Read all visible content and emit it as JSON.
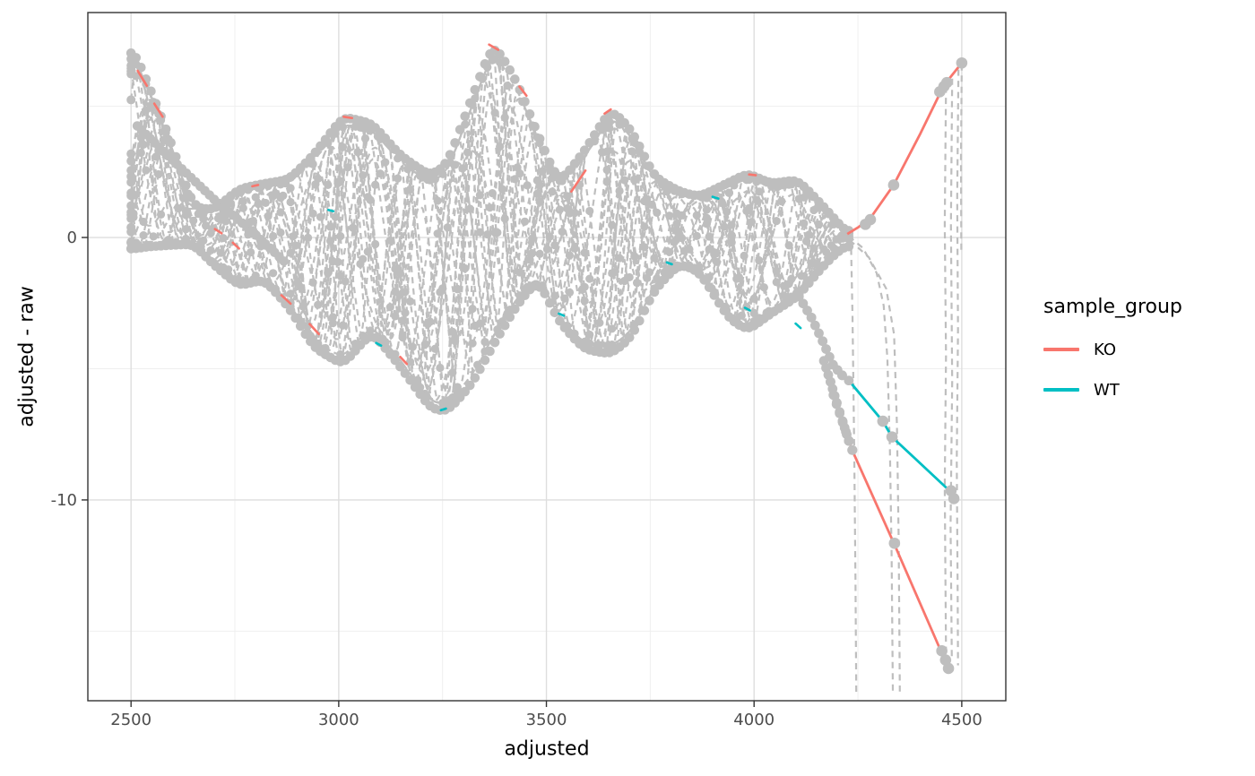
{
  "chart_data": {
    "type": "line",
    "title": "",
    "xlabel": "adjusted",
    "ylabel": "adjusted - raw",
    "x_domain": [
      2396,
      4606
    ],
    "y_domain": [
      -17.65,
      8.57
    ],
    "x_breaks": [
      2500,
      3000,
      3500,
      4000,
      4500
    ],
    "x_minor_breaks": [
      2750,
      3250,
      3750,
      4250
    ],
    "y_breaks": [
      0,
      -10
    ],
    "y_minor_breaks": [
      5,
      -5,
      -15
    ],
    "legend": {
      "title": "sample_group",
      "items": [
        {
          "label": "KO",
          "color": "#F8766D"
        },
        {
          "label": "WT",
          "color": "#00BFC4"
        }
      ]
    },
    "style": {
      "gray": "#BEBEBE",
      "ko": "#F8766D",
      "wt": "#00BFC4",
      "grid_major": "#DEDEDE",
      "grid_minor": "#EFEFEF",
      "panel_border": "#333333",
      "tick_color": "#333333",
      "tick_text": "#4D4D4D",
      "background": "#FFFFFF"
    },
    "n_background_curves": 24,
    "band_envelope": [
      [
        2500,
        7.35,
        -0.45
      ],
      [
        2540,
        5.9,
        -0.35
      ],
      [
        2590,
        3.9,
        -0.3
      ],
      [
        2650,
        1.15,
        -0.25
      ],
      [
        2700,
        1.05,
        -1.05
      ],
      [
        2760,
        1.85,
        -1.85
      ],
      [
        2820,
        2.05,
        -1.6
      ],
      [
        2880,
        2.2,
        -2.65
      ],
      [
        2940,
        3.15,
        -4.2
      ],
      [
        3010,
        4.6,
        -4.85
      ],
      [
        3080,
        4.35,
        -3.6
      ],
      [
        3150,
        3.1,
        -4.95
      ],
      [
        3220,
        2.35,
        -6.5
      ],
      [
        3260,
        2.75,
        -6.65
      ],
      [
        3320,
        5.3,
        -5.6
      ],
      [
        3372,
        7.45,
        -4.1
      ],
      [
        3430,
        5.9,
        -2.55
      ],
      [
        3480,
        3.9,
        -1.6
      ],
      [
        3530,
        2.05,
        -3.2
      ],
      [
        3590,
        3.25,
        -4.25
      ],
      [
        3655,
        4.9,
        -4.45
      ],
      [
        3705,
        4.1,
        -3.8
      ],
      [
        3760,
        2.3,
        -2.0
      ],
      [
        3820,
        1.75,
        -1.0
      ],
      [
        3868,
        1.55,
        -1.3
      ],
      [
        3940,
        2.1,
        -3.1
      ],
      [
        3985,
        2.45,
        -3.55
      ],
      [
        4040,
        2.05,
        -2.9
      ],
      [
        4105,
        2.2,
        -2.25
      ],
      [
        4160,
        1.3,
        -1.2
      ],
      [
        4200,
        0.6,
        -0.55
      ],
      [
        4228,
        0.1,
        -0.25
      ]
    ],
    "ridge_chain": [
      [
        2515,
        4.25
      ],
      [
        2600,
        2.95
      ],
      [
        2700,
        1.45
      ],
      [
        2790,
        0.25
      ],
      [
        2868,
        -0.9
      ]
    ],
    "descent_chains": [
      [
        [
          4108,
          -2.25
        ],
        [
          4138,
          -3.05
        ],
        [
          4165,
          -3.95
        ],
        [
          4190,
          -4.85
        ],
        [
          4212,
          -5.25
        ],
        [
          4228,
          -5.45
        ]
      ],
      [
        [
          4168,
          -4.7
        ],
        [
          4184,
          -5.5
        ],
        [
          4199,
          -6.3
        ],
        [
          4213,
          -7.0
        ],
        [
          4228,
          -7.75
        ],
        [
          4237,
          -8.1
        ]
      ]
    ],
    "highlight_lines": {
      "KO_up": [
        [
          4213,
          0.02
        ],
        [
          4252,
          0.4
        ],
        [
          4285,
          0.85
        ],
        [
          4336,
          2.0
        ],
        [
          4400,
          3.95
        ],
        [
          4457,
          5.8
        ],
        [
          4500,
          6.65
        ]
      ],
      "KO_down": [
        [
          4191,
          -6.0
        ],
        [
          4236,
          -8.1
        ],
        [
          4338,
          -11.7
        ],
        [
          4468,
          -16.42
        ]
      ],
      "WT": [
        [
          4228,
          -5.45
        ],
        [
          4310,
          -7.0
        ],
        [
          4332,
          -7.6
        ],
        [
          4474,
          -9.7
        ]
      ]
    },
    "tail_curves": [
      [
        [
          4228,
          0.05
        ],
        [
          4262,
          -0.4
        ],
        [
          4295,
          -1.35
        ],
        [
          4312,
          -2.6
        ],
        [
          4321,
          -4.6
        ],
        [
          4327,
          -8.0
        ],
        [
          4331,
          -12.0
        ],
        [
          4334,
          -17.3
        ]
      ],
      [
        [
          4230,
          -0.1
        ],
        [
          4276,
          -0.75
        ],
        [
          4318,
          -1.95
        ],
        [
          4337,
          -3.7
        ],
        [
          4344,
          -7.2
        ],
        [
          4348,
          -11.5
        ],
        [
          4351,
          -17.3
        ]
      ],
      [
        [
          4233,
          0.0
        ],
        [
          4237,
          -3.0
        ],
        [
          4241,
          -8.0
        ],
        [
          4244,
          -13.0
        ],
        [
          4246,
          -17.4
        ]
      ],
      [
        [
          4462,
          5.75
        ],
        [
          4459,
          0.5
        ],
        [
          4462,
          -4.5
        ],
        [
          4459,
          -9.5
        ],
        [
          4462,
          -15.8
        ]
      ],
      [
        [
          4477,
          6.05
        ],
        [
          4474,
          0.5
        ],
        [
          4477,
          -5.5
        ],
        [
          4473,
          -11.0
        ],
        [
          4476,
          -16.1
        ]
      ],
      [
        [
          4492,
          6.4
        ],
        [
          4489,
          1.5
        ],
        [
          4491,
          -3.5
        ],
        [
          4488,
          -8.5
        ],
        [
          4490,
          -13.5
        ],
        [
          4491,
          -16.3
        ]
      ],
      [
        [
          4500,
          6.6
        ],
        [
          4498,
          3.0
        ],
        [
          4499,
          -0.5
        ]
      ]
    ],
    "endpoint_dots": [
      [
        4213,
        0.02
      ],
      [
        4268,
        0.5
      ],
      [
        4280,
        0.68
      ],
      [
        4336,
        2.0
      ],
      [
        4447,
        5.55
      ],
      [
        4457,
        5.75
      ],
      [
        4464,
        5.9
      ],
      [
        4500,
        6.65
      ],
      [
        4310,
        -7.0
      ],
      [
        4332,
        -7.6
      ],
      [
        4474,
        -9.65
      ],
      [
        4481,
        -9.95
      ],
      [
        4338,
        -11.65
      ],
      [
        4452,
        -15.75
      ],
      [
        4461,
        -16.1
      ],
      [
        4468,
        -16.42
      ]
    ],
    "accents": {
      "KO": [
        [
          2516,
          6.35,
          2538,
          5.78
        ],
        [
          2556,
          5.1,
          2576,
          4.6
        ],
        [
          2702,
          0.32,
          2718,
          0.16
        ],
        [
          2745,
          -0.2,
          2760,
          -0.42
        ],
        [
          2862,
          -2.2,
          2884,
          -2.52
        ],
        [
          2930,
          -3.3,
          2952,
          -3.68
        ],
        [
          3012,
          4.6,
          3032,
          4.55
        ],
        [
          3148,
          -4.55,
          3164,
          -4.82
        ],
        [
          3362,
          7.35,
          3384,
          7.15
        ],
        [
          3560,
          1.75,
          3594,
          2.55
        ],
        [
          3640,
          4.72,
          3655,
          4.88
        ],
        [
          3988,
          2.4,
          4004,
          2.37
        ],
        [
          2792,
          1.95,
          2806,
          2.0
        ],
        [
          3435,
          5.75,
          3452,
          5.4
        ]
      ],
      "WT": [
        [
          2975,
          1.05,
          2987,
          1.0
        ],
        [
          3090,
          -4.02,
          3102,
          -4.12
        ],
        [
          3246,
          -6.58,
          3258,
          -6.52
        ],
        [
          3900,
          1.55,
          3914,
          1.48
        ],
        [
          4100,
          -3.28,
          4112,
          -3.45
        ],
        [
          3790,
          -0.95,
          3802,
          -1.02
        ],
        [
          3978,
          -2.68,
          3990,
          -2.78
        ],
        [
          3530,
          -2.9,
          3542,
          -2.98
        ]
      ]
    }
  }
}
